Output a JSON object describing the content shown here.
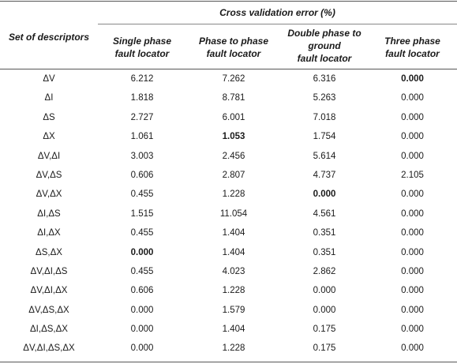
{
  "table": {
    "group_header": "Cross validation error (%)",
    "row_header": "Set of descriptors",
    "columns": [
      "Single phase\nfault locator",
      "Phase to phase\nfault locator",
      "Double phase to\nground\nfault locator",
      "Three phase\nfault locator"
    ],
    "rows": [
      {
        "label": "ΔV",
        "values": [
          "6.212",
          "7.262",
          "6.316",
          "0.000"
        ],
        "bold": [
          false,
          false,
          false,
          true
        ]
      },
      {
        "label": "ΔI",
        "values": [
          "1.818",
          "8.781",
          "5.263",
          "0.000"
        ],
        "bold": [
          false,
          false,
          false,
          false
        ]
      },
      {
        "label": "ΔS",
        "values": [
          "2.727",
          "6.001",
          "7.018",
          "0.000"
        ],
        "bold": [
          false,
          false,
          false,
          false
        ]
      },
      {
        "label": "ΔX",
        "values": [
          "1.061",
          "1.053",
          "1.754",
          "0.000"
        ],
        "bold": [
          false,
          true,
          false,
          false
        ]
      },
      {
        "label": "ΔV,ΔI",
        "values": [
          "3.003",
          "2.456",
          "5.614",
          "0.000"
        ],
        "bold": [
          false,
          false,
          false,
          false
        ]
      },
      {
        "label": "ΔV,ΔS",
        "values": [
          "0.606",
          "2.807",
          "4.737",
          "2.105"
        ],
        "bold": [
          false,
          false,
          false,
          false
        ]
      },
      {
        "label": "ΔV,ΔX",
        "values": [
          "0.455",
          "1.228",
          "0.000",
          "0.000"
        ],
        "bold": [
          false,
          false,
          true,
          false
        ]
      },
      {
        "label": "ΔI,ΔS",
        "values": [
          "1.515",
          "11.054",
          "4.561",
          "0.000"
        ],
        "bold": [
          false,
          false,
          false,
          false
        ]
      },
      {
        "label": "ΔI,ΔX",
        "values": [
          "0.455",
          "1.404",
          "0.351",
          "0.000"
        ],
        "bold": [
          false,
          false,
          false,
          false
        ]
      },
      {
        "label": "ΔS,ΔX",
        "values": [
          "0.000",
          "1.404",
          "0.351",
          "0.000"
        ],
        "bold": [
          true,
          false,
          false,
          false
        ]
      },
      {
        "label": "ΔV,ΔI,ΔS",
        "values": [
          "0.455",
          "4.023",
          "2.862",
          "0.000"
        ],
        "bold": [
          false,
          false,
          false,
          false
        ]
      },
      {
        "label": "ΔV,ΔI,ΔX",
        "values": [
          "0.606",
          "1.228",
          "0.000",
          "0.000"
        ],
        "bold": [
          false,
          false,
          false,
          false
        ]
      },
      {
        "label": "ΔV,ΔS,ΔX",
        "values": [
          "0.000",
          "1.579",
          "0.000",
          "0.000"
        ],
        "bold": [
          false,
          false,
          false,
          false
        ]
      },
      {
        "label": "ΔI,ΔS,ΔX",
        "values": [
          "0.000",
          "1.404",
          "0.175",
          "0.000"
        ],
        "bold": [
          false,
          false,
          false,
          false
        ]
      },
      {
        "label": "ΔV,ΔI,ΔS,ΔX",
        "values": [
          "0.000",
          "1.228",
          "0.175",
          "0.000"
        ],
        "bold": [
          false,
          false,
          false,
          false
        ]
      }
    ]
  }
}
